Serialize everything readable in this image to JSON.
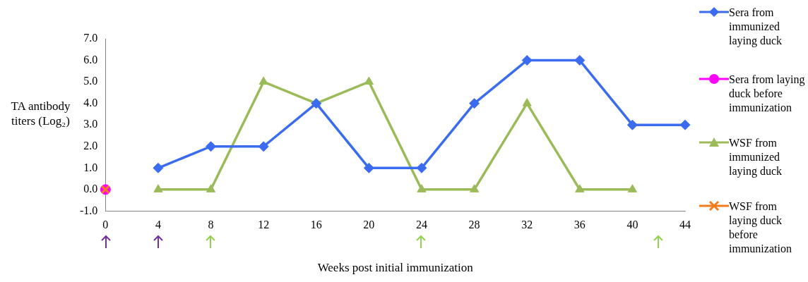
{
  "chart_data": {
    "type": "line",
    "ylabel": "TA antibody titers (Log₂)",
    "xlabel": "Weeks post initial immunization",
    "xlim": [
      0,
      44
    ],
    "xticks": [
      0,
      4,
      8,
      12,
      16,
      20,
      24,
      28,
      32,
      36,
      40,
      44
    ],
    "ylim": [
      -1,
      7
    ],
    "yticks": [
      {
        "value": -1,
        "label": "-1.0"
      },
      {
        "value": 0,
        "label": "0.0"
      },
      {
        "value": 1,
        "label": "1.0"
      },
      {
        "value": 2,
        "label": "2.0"
      },
      {
        "value": 3,
        "label": "3.0"
      },
      {
        "value": 4,
        "label": "4.0"
      },
      {
        "value": 5,
        "label": "5.0"
      },
      {
        "value": 6,
        "label": "6.0"
      },
      {
        "value": 7,
        "label": "7.0"
      }
    ],
    "grid": false,
    "legend": "right",
    "series": [
      {
        "name": "Sera from immunized laying duck",
        "color": "#3b6cf0",
        "marker": "diamond",
        "x": [
          4,
          8,
          12,
          16,
          20,
          24,
          28,
          32,
          36,
          40,
          44
        ],
        "values": [
          1,
          2,
          2,
          4,
          1,
          1,
          4,
          6,
          6,
          3,
          3
        ]
      },
      {
        "name": "Sera from laying duck before immunization",
        "color": "#ff00ff",
        "marker": "circle",
        "x": [
          0
        ],
        "values": [
          0
        ]
      },
      {
        "name": "WSF from immunized laying duck",
        "color": "#9bbb59",
        "marker": "triangle",
        "x": [
          4,
          8,
          12,
          16,
          20,
          24,
          28,
          32,
          36,
          40
        ],
        "values": [
          0,
          0,
          5,
          4,
          5,
          0,
          0,
          4,
          0,
          0
        ]
      },
      {
        "name": "WSF from laying duck before immunization",
        "color": "#f07c1e",
        "marker": "cross",
        "x": [
          0
        ],
        "values": [
          0
        ]
      }
    ]
  }
}
